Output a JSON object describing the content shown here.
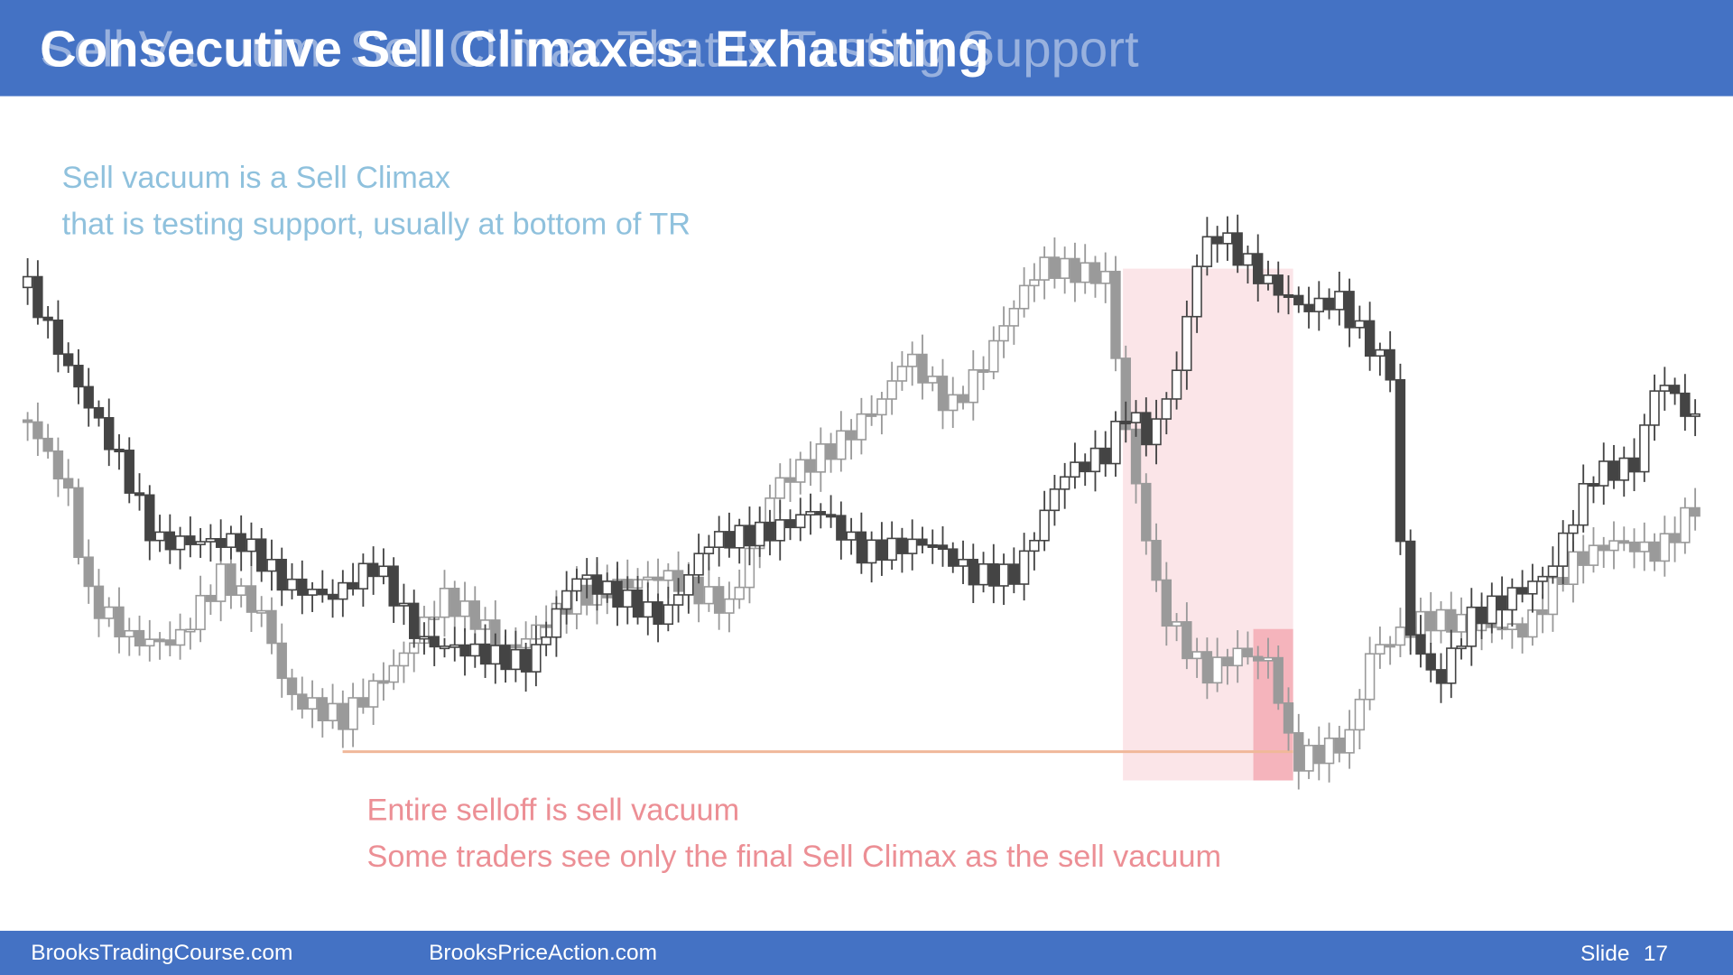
{
  "header": {
    "title": "Consecutive Sell Climaxes: Exhausting",
    "previous_title": "Sell Vacuum: Sell Climax That Is Testing Support"
  },
  "notes": {
    "top": [
      "Sell vacuum is a Sell Climax",
      "that is testing support, usually at bottom of TR"
    ],
    "bottom": [
      "Entire selloff is sell vacuum",
      "Some traders see only the final Sell Climax as the sell vacuum"
    ]
  },
  "footer": {
    "left": "BrooksTradingCourse.com",
    "center": "BrooksPriceAction.com",
    "slide_label": "Slide",
    "slide_number": "17"
  }
}
